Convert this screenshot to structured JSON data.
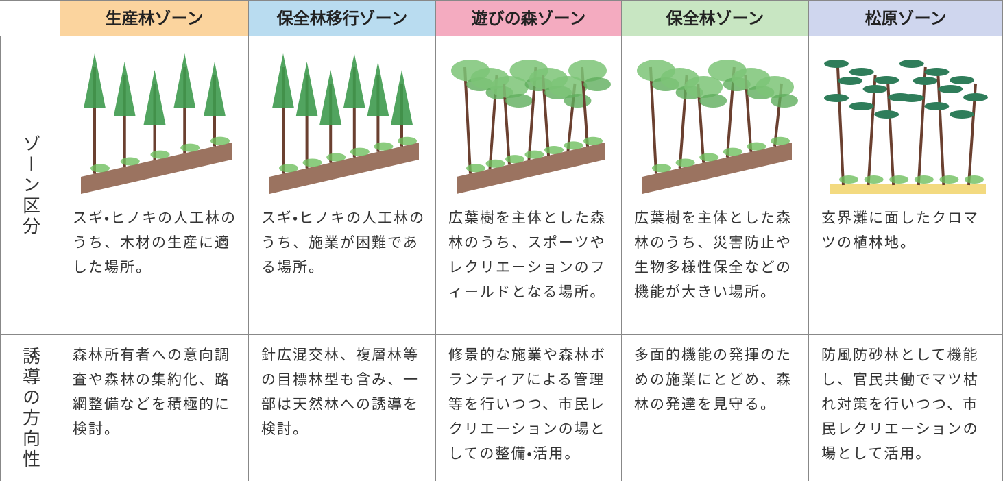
{
  "table": {
    "headers": [
      "生産林ゾーン",
      "保全林移行ゾーン",
      "遊びの森ゾーン",
      "保全林ゾーン",
      "松原ゾーン"
    ],
    "rows": [
      {
        "label": "ゾーン区分",
        "cells": [
          "スギ・ヒノキの人工林のうち、木材の生産に適した場所。",
          "スギ・ヒノキの人工林のうち、施業が困難である場所。",
          "広葉樹を主体とした森林のうち、スポーツやレクリエーションのフィールドとなる場所。",
          "広葉樹を主体とした森林のうち、災害防止や生物多様性保全などの機能が大きい場所。",
          "玄界灘に面したクロマツの植林地。"
        ]
      },
      {
        "label": "誘導の方向性",
        "cells": [
          "森林所有者への意向調査や森林の集約化、路網整備などを積極的に検討。",
          "針広混交林、複層林等の目標林型も含み、一部は天然林への誘導を検討。",
          "修景的な施業や森林ボランティアによる管理等を行いつつ、市民レクリエーションの場としての整備・活用。",
          "多面的機能の発揮のための施業にとどめ、森林の発達を見守る。",
          "防風防砂林として機能し、官民共働でマツ枯れ対策を行いつつ、市民レクリエーションの場として活用。"
        ]
      }
    ]
  }
}
